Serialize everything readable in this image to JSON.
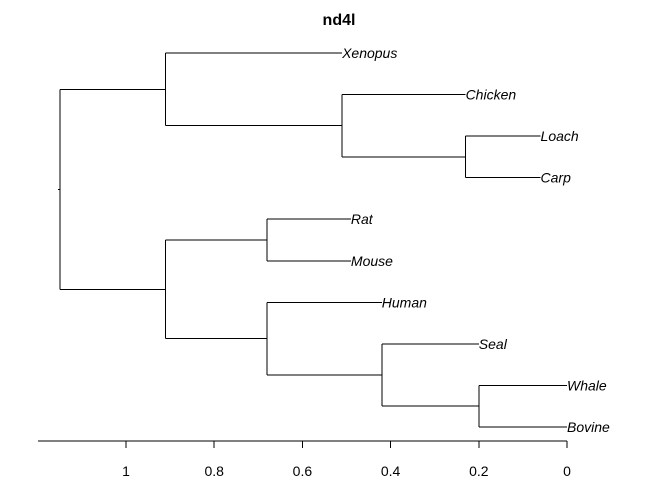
{
  "title": "nd4l",
  "chart_data": {
    "type": "dendrogram",
    "title": "nd4l",
    "axis": {
      "ticks": [
        1,
        0.8,
        0.6,
        0.4,
        0.2,
        0
      ],
      "range": [
        1.16,
        0
      ]
    },
    "leaves": [
      "Xenopus",
      "Chicken",
      "Loach",
      "Carp",
      "Rat",
      "Mouse",
      "Human",
      "Seal",
      "Whale",
      "Bovine"
    ],
    "leaf_heights": {
      "Xenopus": 0.51,
      "Chicken": 0.23,
      "Loach": 0.06,
      "Carp": 0.06,
      "Rat": 0.49,
      "Mouse": 0.49,
      "Human": 0.42,
      "Seal": 0.2,
      "Whale": 0.0,
      "Bovine": 0.0
    },
    "nodes": [
      {
        "id": "n_loach_carp",
        "height": 0.23,
        "children": [
          "Loach",
          "Carp"
        ]
      },
      {
        "id": "n_chicken",
        "height": 0.51,
        "children": [
          "Chicken",
          "n_loach_carp"
        ]
      },
      {
        "id": "n_top",
        "height": 0.91,
        "children": [
          "Xenopus",
          "n_chicken"
        ]
      },
      {
        "id": "n_rat_mouse",
        "height": 0.68,
        "children": [
          "Rat",
          "Mouse"
        ]
      },
      {
        "id": "n_whale_bovine",
        "height": 0.2,
        "children": [
          "Whale",
          "Bovine"
        ]
      },
      {
        "id": "n_seal",
        "height": 0.42,
        "children": [
          "Seal",
          "n_whale_bovine"
        ]
      },
      {
        "id": "n_human",
        "height": 0.68,
        "children": [
          "Human",
          "n_seal"
        ]
      },
      {
        "id": "n_bottom",
        "height": 0.91,
        "children": [
          "n_rat_mouse",
          "n_human"
        ]
      },
      {
        "id": "root",
        "height": 1.15,
        "children": [
          "n_top",
          "n_bottom"
        ]
      }
    ]
  }
}
